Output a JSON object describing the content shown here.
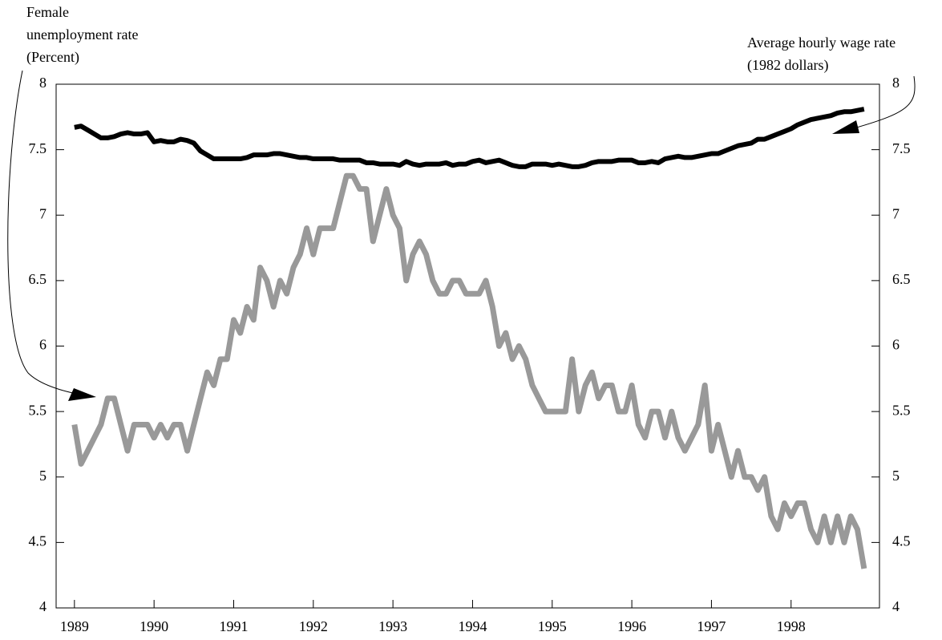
{
  "chart_data": {
    "type": "line",
    "ylabel": [
      "Female",
      "unemployment rate",
      "(Percent)"
    ],
    "y2label": [
      "Average hourly wage rate",
      "(1982 dollars)"
    ],
    "x": [
      1989,
      1989.083,
      1989.167,
      1989.25,
      1989.333,
      1989.417,
      1989.5,
      1989.583,
      1989.667,
      1989.75,
      1989.833,
      1989.917,
      1990,
      1990.083,
      1990.167,
      1990.25,
      1990.333,
      1990.417,
      1990.5,
      1990.583,
      1990.667,
      1990.75,
      1990.833,
      1990.917,
      1991,
      1991.083,
      1991.167,
      1991.25,
      1991.333,
      1991.417,
      1991.5,
      1991.583,
      1991.667,
      1991.75,
      1991.833,
      1991.917,
      1992,
      1992.083,
      1992.167,
      1992.25,
      1992.333,
      1992.417,
      1992.5,
      1992.583,
      1992.667,
      1992.75,
      1992.833,
      1992.917,
      1993,
      1993.083,
      1993.167,
      1993.25,
      1993.333,
      1993.417,
      1993.5,
      1993.583,
      1993.667,
      1993.75,
      1993.833,
      1993.917,
      1994,
      1994.083,
      1994.167,
      1994.25,
      1994.333,
      1994.417,
      1994.5,
      1994.583,
      1994.667,
      1994.75,
      1994.833,
      1994.917,
      1995,
      1995.083,
      1995.167,
      1995.25,
      1995.333,
      1995.417,
      1995.5,
      1995.583,
      1995.667,
      1995.75,
      1995.833,
      1995.917,
      1996,
      1996.083,
      1996.167,
      1996.25,
      1996.333,
      1996.417,
      1996.5,
      1996.583,
      1996.667,
      1996.75,
      1996.833,
      1996.917,
      1997,
      1997.083,
      1997.167,
      1997.25,
      1997.333,
      1997.417,
      1997.5,
      1997.583,
      1997.667,
      1997.75,
      1997.833,
      1997.917,
      1998,
      1998.083,
      1998.167,
      1998.25,
      1998.333,
      1998.417,
      1998.5,
      1998.583,
      1998.667,
      1998.75,
      1998.833,
      1998.917
    ],
    "series": [
      {
        "name": "Female unemployment rate",
        "color": "#999999",
        "axis": "y",
        "values": [
          5.4,
          5.1,
          5.2,
          5.3,
          5.4,
          5.6,
          5.6,
          5.4,
          5.2,
          5.4,
          5.4,
          5.4,
          5.3,
          5.4,
          5.3,
          5.4,
          5.4,
          5.2,
          5.4,
          5.6,
          5.8,
          5.7,
          5.9,
          5.9,
          6.2,
          6.1,
          6.3,
          6.2,
          6.6,
          6.5,
          6.3,
          6.5,
          6.4,
          6.6,
          6.7,
          6.9,
          6.7,
          6.9,
          6.9,
          6.9,
          7.1,
          7.3,
          7.3,
          7.2,
          7.2,
          6.8,
          7.0,
          7.2,
          7.0,
          6.9,
          6.5,
          6.7,
          6.8,
          6.7,
          6.5,
          6.4,
          6.4,
          6.5,
          6.5,
          6.4,
          6.4,
          6.4,
          6.5,
          6.3,
          6.0,
          6.1,
          5.9,
          6.0,
          5.9,
          5.7,
          5.6,
          5.5,
          5.5,
          5.5,
          5.5,
          5.9,
          5.5,
          5.7,
          5.8,
          5.6,
          5.7,
          5.7,
          5.5,
          5.5,
          5.7,
          5.4,
          5.3,
          5.5,
          5.5,
          5.3,
          5.5,
          5.3,
          5.2,
          5.3,
          5.4,
          5.7,
          5.2,
          5.4,
          5.2,
          5.0,
          5.2,
          5.0,
          5.0,
          4.9,
          5.0,
          4.7,
          4.6,
          4.8,
          4.7,
          4.8,
          4.8,
          4.6,
          4.5,
          4.7,
          4.5,
          4.7,
          4.5,
          4.7,
          4.6,
          4.3
        ]
      },
      {
        "name": "Average hourly wage rate",
        "color": "#000000",
        "axis": "y2",
        "values": [
          7.67,
          7.68,
          7.65,
          7.62,
          7.59,
          7.59,
          7.6,
          7.62,
          7.63,
          7.62,
          7.62,
          7.63,
          7.56,
          7.57,
          7.56,
          7.56,
          7.58,
          7.57,
          7.55,
          7.49,
          7.46,
          7.43,
          7.43,
          7.43,
          7.43,
          7.43,
          7.44,
          7.46,
          7.46,
          7.46,
          7.47,
          7.47,
          7.46,
          7.45,
          7.44,
          7.44,
          7.43,
          7.43,
          7.43,
          7.43,
          7.42,
          7.42,
          7.42,
          7.42,
          7.4,
          7.4,
          7.39,
          7.39,
          7.39,
          7.38,
          7.41,
          7.39,
          7.38,
          7.39,
          7.39,
          7.39,
          7.4,
          7.38,
          7.39,
          7.39,
          7.41,
          7.42,
          7.4,
          7.41,
          7.42,
          7.4,
          7.38,
          7.37,
          7.37,
          7.39,
          7.39,
          7.39,
          7.38,
          7.39,
          7.38,
          7.37,
          7.37,
          7.38,
          7.4,
          7.41,
          7.41,
          7.41,
          7.42,
          7.42,
          7.42,
          7.4,
          7.4,
          7.41,
          7.4,
          7.43,
          7.44,
          7.45,
          7.44,
          7.44,
          7.45,
          7.46,
          7.47,
          7.47,
          7.49,
          7.51,
          7.53,
          7.54,
          7.55,
          7.58,
          7.58,
          7.6,
          7.62,
          7.64,
          7.66,
          7.69,
          7.71,
          7.73,
          7.74,
          7.75,
          7.76,
          7.78,
          7.79,
          7.79,
          7.8,
          7.81
        ]
      }
    ],
    "xlim": [
      1988.77,
      1999.11
    ],
    "xticks": [
      1989,
      1990,
      1991,
      1992,
      1993,
      1994,
      1995,
      1996,
      1997,
      1998
    ],
    "ylim": [
      4,
      8
    ],
    "yticks": [
      4,
      4.5,
      5,
      5.5,
      6,
      6.5,
      7,
      7.5,
      8
    ],
    "y2lim": [
      4,
      8
    ],
    "y2ticks": [
      4,
      4.5,
      5,
      5.5,
      6,
      6.5,
      7,
      7.5,
      8
    ],
    "grid": false
  }
}
